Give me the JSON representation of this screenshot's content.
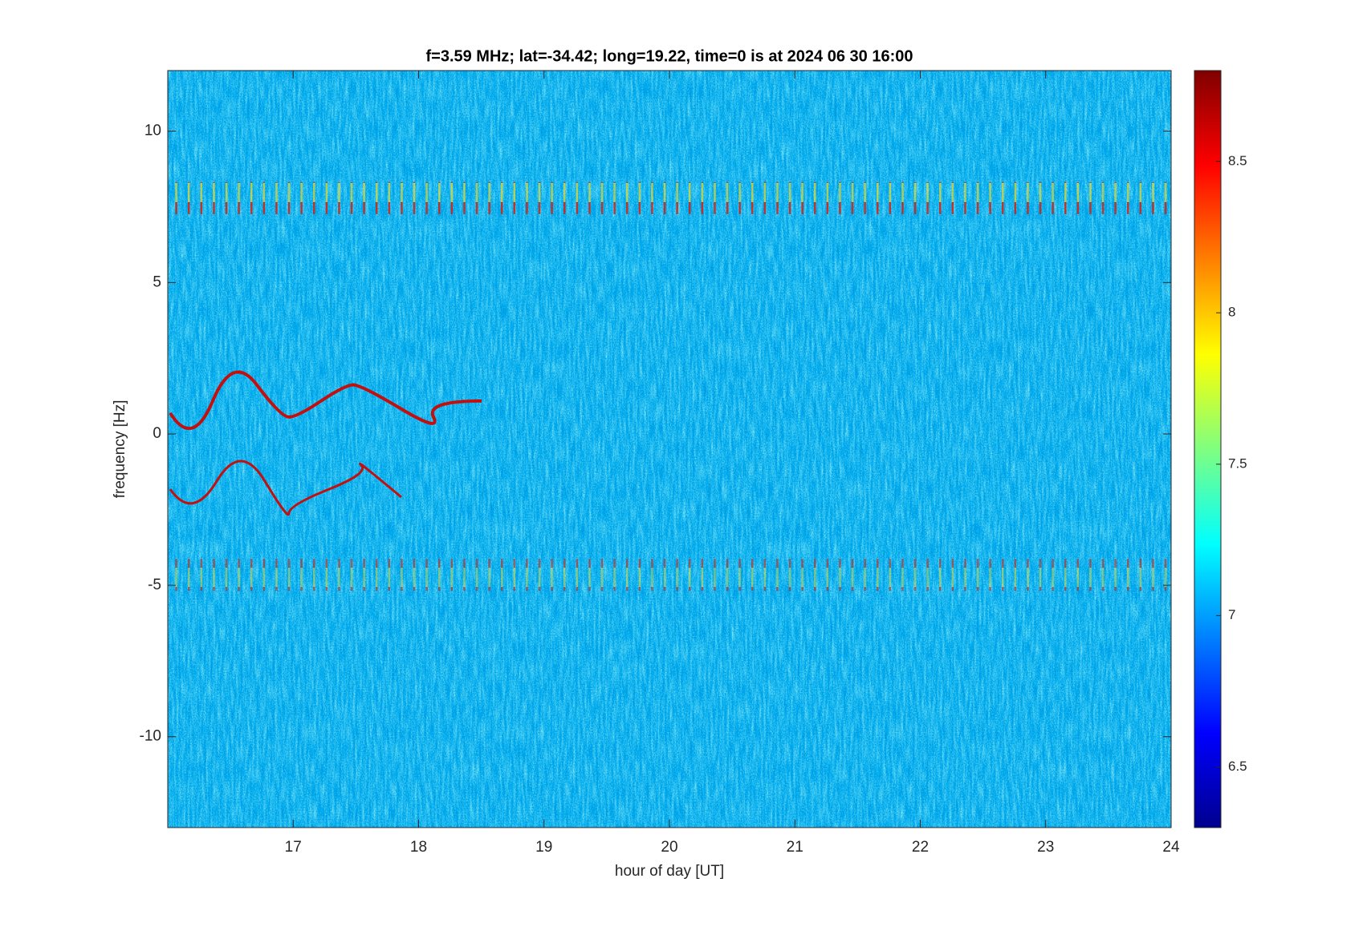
{
  "chart_data": {
    "type": "heatmap",
    "title": "f=3.59 MHz;  lat=-34.42; long=19.22, time=0 is at 2024 06 30 16:00",
    "x_label": "hour of day [UT]",
    "y_label": "frequency [Hz]",
    "xlim": [
      16,
      24
    ],
    "xticks": [
      17,
      18,
      19,
      20,
      21,
      22,
      23,
      24
    ],
    "ylim": [
      -13,
      12
    ],
    "yticks": [
      -10,
      -5,
      0,
      5,
      10
    ],
    "clim": [
      6.3,
      8.8
    ],
    "cticks": [
      6.5,
      7,
      7.5,
      8,
      8.5
    ],
    "colormap": "jet"
  }
}
